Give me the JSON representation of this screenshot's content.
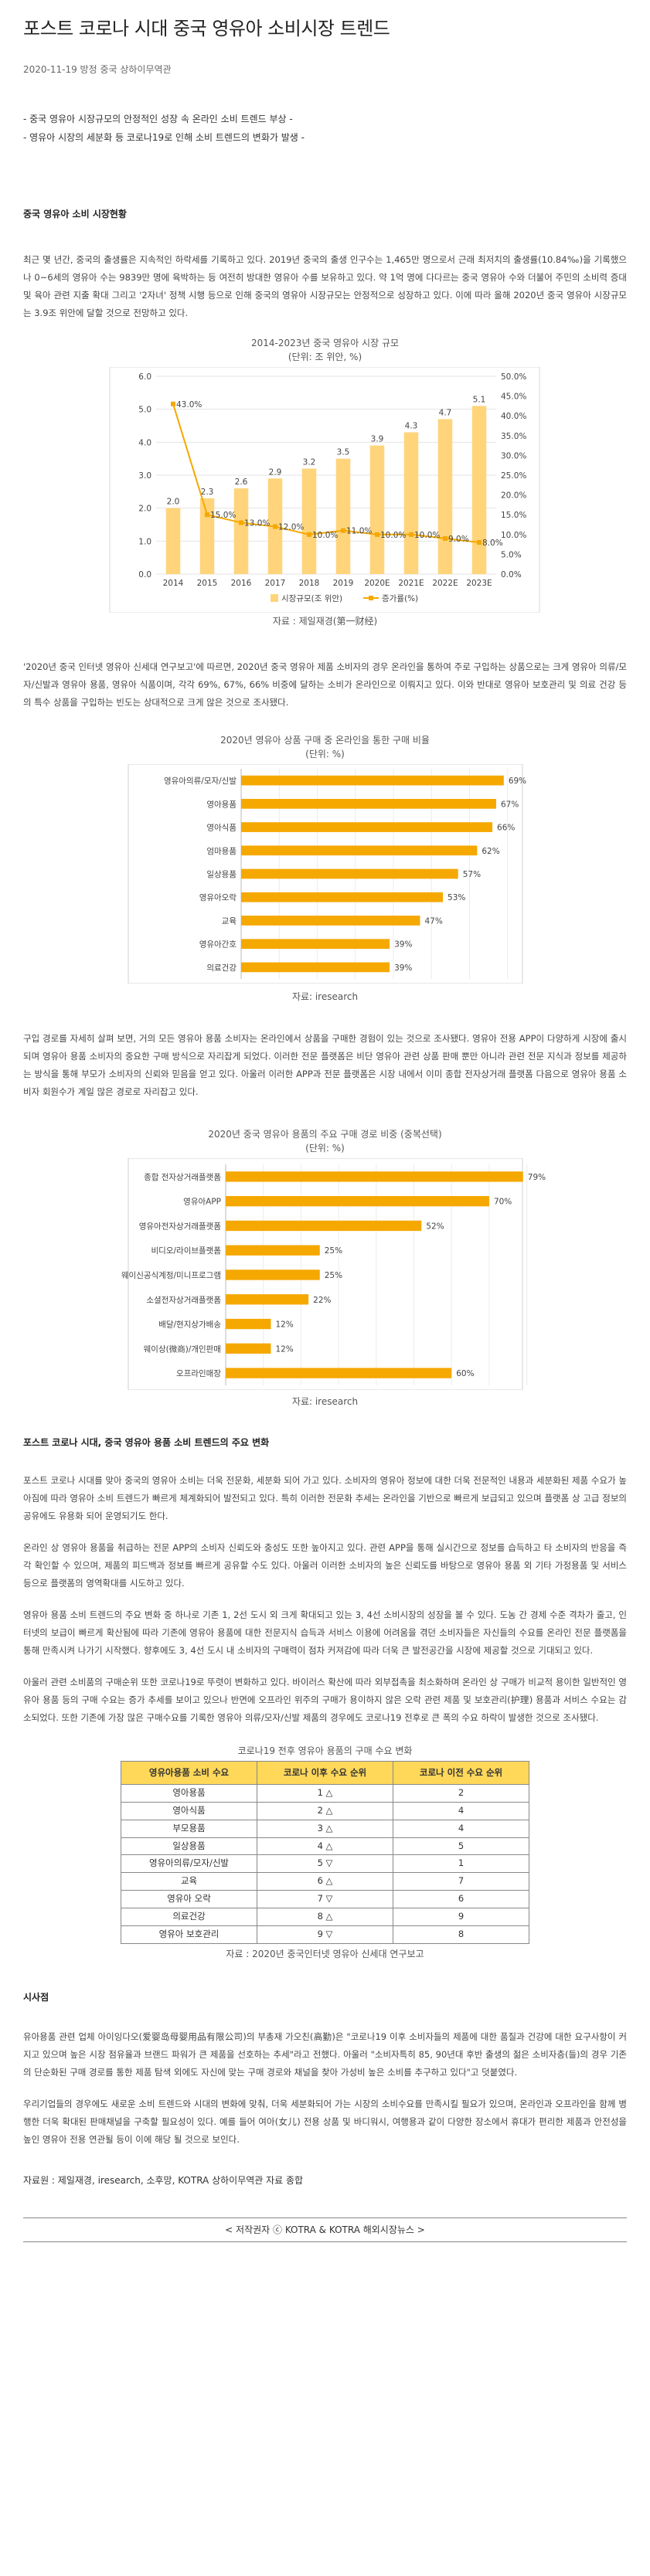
{
  "article": {
    "title": "포스트 코로나 시대 중국 영유아 소비시장 트렌드",
    "meta": "2020-11-19 방정 중국 상하이무역관",
    "summary": [
      "- 중국 영유아 시장규모의 안정적인 성장 속 온라인 소비 트렌드 부상 -",
      "- 영유아 시장의 세분화 등 코로나19로 인해 소비 트렌드의 변화가 발생 -"
    ],
    "section1_title": "중국 영유아 소비 시장현황",
    "para1": "최근 몇 년간, 중국의 출생률은 지속적인 하락세를 기록하고 있다. 2019년 중국의 출생 인구수는 1,465만 명으로서 근래 최저치의 출생률(10.84‰)을 기록했으나 0~6세의 영유아 수는 9839만 명에 육박하는 등 여전히 방대한 영유아 수를 보유하고 있다. 약 1억 명에 다다르는 중국 영유아 수와 더불어 주민의 소비력 증대 및 육아 관련 지출 확대 그리고 '2자녀' 정책 시행 등으로 인해 중국의 영유아 시장규모는 안정적으로 성장하고 있다. 이에 따라 올해 2020년 중국 영유아 시장규모는 3.9조 위안에 달할 것으로 전망하고 있다.",
    "para2": "'2020년 중국 인터넷 영유아 신세대 연구보고'에 따르면, 2020년 중국 영유아 제품 소비자의 경우 온라인을 통하여 주로 구입하는 상품으로는 크게 영유아 의류/모자/신발과 영유아 용품, 영유아 식품이며, 각각 69%, 67%, 66% 비중에 달하는 소비가 온라인으로 이뤄지고 있다. 이와 반대로 영유아 보호관리 및 의료 건강 등의 특수 상품을 구입하는 빈도는 상대적으로 크게 않은 것으로 조사됐다.",
    "para3": "구입 경로를 자세히 살펴 보면, 거의 모든 영유아 용품 소비자는 온라인에서 상품을 구매한 경험이 있는 것으로 조사됐다. 영유아 전용 APP이 다양하게 시장에 출시되며 영유아 용품 소비자의 중요한 구매 방식으로 자리잡게 되었다. 이러한 전문 플랫폼은 비단 영유아 관련 상품 판매 뿐만 아니라 관련 전문 지식과 정보를 제공하는 방식을 통해 부모가 소비자의 신뢰와 믿음을 얻고 있다. 아울러 이러한 APP과 전문 플랫폼은 시장 내에서 이미 종합 전자상거래 플랫폼 다음으로 영유아 용품 소비자 회원수가 계일 많은 경로로 자리잡고 있다.",
    "section2_title": "포스트 코로나 시대, 중국 영유아 용품 소비 트렌드의 주요 변화",
    "para4": "포스트 코로나 시대를 맞아 중국의 영유아 소비는 더욱 전문화, 세분화 되어 가고 있다. 소비자의 영유아 정보에 대한 더욱 전문적인 내용과 세분화된 제품 수요가 높아짐에 따라 영유아 소비 트렌드가 빠르게 체계화되어 발전되고 있다. 특히 이러한 전문화 추세는 온라인을 기반으로 빠르게 보급되고 있으며 플랫폼 상 고급 정보의 공유에도 유용화 되어 운영되기도 한다.",
    "para5": "온라인 상 영유아 용품을 취급하는 전문 APP의 소비자 신뢰도와 충성도 또한 높아지고 있다. 관련 APP을 통해 실시간으로 정보를 습득하고 타 소비자의 반응을 즉각 확인할 수 있으며, 제품의 피드백과 정보를 빠르게 공유할 수도 있다. 아울러 이러한 소비자의 높은 신뢰도를 바탕으로 영유아 용품 외 기타 가정용품 및 서비스 등으로 플랫폼의 영역확대를 시도하고 있다.",
    "para6": "영유아 용품 소비 트렌드의 주요 변화 중 하나로 기존 1, 2선 도시 외 크게 확대되고 있는 3, 4선 소비시장의 성장을 볼 수 있다. 도농 간 경제 수준 격차가 줄고, 인터넷의 보급이 빠르게 확산됨에 따라 기존에 영유아 용품에 대한 전문지식 습득과 서비스 이용에 어려움을 겪던 소비자들은 자신들의 수요를 온라인 전문 플랫폼을 통해 만족시켜 나가기 시작했다. 향후에도 3, 4선 도시 내 소비자의 구매력이 점차 커져감에 따라 더욱 큰 발전공간을 시장에 제공할 것으로 기대되고 있다.",
    "para7": "아울러 관련 소비품의 구매순위 또한 코로나19로 뚜렷이 변화하고 있다. 바이러스 확산에 따라 외부접촉을 최소화하며 온라인 상 구매가 비교적 용이한 일반적인 영유아 용품 등의 구매 수요는 증가 추세를 보이고 있으나 반면에 오프라인 위주의 구매가 용이하지 않은 오락 관련 제품 및 보호관리(护理) 용품과 서비스 수요는 감소되었다. 또한 기존에 가장 많은 구매수요를 기록한 영유아 의류/모자/신발 제품의 경우에도 코로나19 전후로 큰 폭의 수요 하락이 발생한 것으로 조사됐다.",
    "section3_title": "시사점",
    "para8": "유아용품 관련 업체 아이잉다오(爱婴岛母婴用品有限公司)의 부총재 가오친(高勤)은 \"코로나19 이후 소비자들의 제품에 대한 품질과 건강에 대한 요구사항이 커지고 있으며 높은 시장 점유율과 브랜드 파워가 큰 제품을 선호하는 추세\"라고 전했다. 아울러 \"소비자특히 85, 90년대 후반 출생의 젊은 소비자층(들)의 경우 기존의 단순화된 구매 경로를 통한 제품 탐색 외에도 자신에 맞는 구매 경로와 채널을 찾아 가성비 높은 소비를 추구하고 있다\"고 덧붙였다.",
    "para9": "우리기업들의 경우에도 새로운 소비 트렌드와 시대의 변화에 맞춰, 더욱 세분화되어 가는 시장의 소비수요를 만족시킬 필요가 있으며, 온라인과 오프라인을 함께 병행한 더욱 확대된 판매채널을 구축할 필요성이 있다. 예를 들어 여아(女儿) 전용 상품 및 바디워시, 여행용과 같이 다양한 장소에서 휴대가 편리한 제품과 안전성을 높인 영유아 전용 연관될 등이 이에 해당 될 것으로 보인다.",
    "sources": "자료원 : 제일재경, iresearch, 소후망, KOTRA 상하이무역관 자료 종합",
    "footer": "< 저작권자 ⓒ KOTRA & KOTRA 해외시장뉴스 >"
  },
  "chart1": {
    "title": "2014-2023년 중국 영유아 시장 규모",
    "unit": "(단위: 조 위안, %)",
    "source": "자료 : 제일재경(第一财经)",
    "legend_bar": "시장규모(조 위안)",
    "legend_line": "증가률(%)",
    "colors": {
      "bar": "#ffd47a",
      "line": "#f5a800"
    }
  },
  "chart2": {
    "title": "2020년  영유아 상품 구매  중 온라인을 통한 구매 비율",
    "unit": "(단위: %)",
    "source": "자료: iresearch",
    "colors": {
      "bar": "#f5a800"
    }
  },
  "chart3": {
    "title": "2020년 중국 영유아 용품의 주요 구매 경로 비중 (중복선택)",
    "unit": "(단위: %)",
    "source": "자료: iresearch",
    "colors": {
      "bar": "#f5a800"
    }
  },
  "table": {
    "caption": "코로나19 전후 영유아 용품의 구매 수요 변화",
    "headers": [
      "영유아용품 소비 수요",
      "코로나 이후 수요 순위",
      "코로나 이전 수요 순위"
    ],
    "rows": [
      [
        "영아용품",
        "1 △",
        "2"
      ],
      [
        "영아식품",
        "2 △",
        "4"
      ],
      [
        "부모용품",
        "3 △",
        "4"
      ],
      [
        "일상용품",
        "4 △",
        "5"
      ],
      [
        "영유아의류/모자/신발",
        "5 ▽",
        "1"
      ],
      [
        "교육",
        "6 △",
        "7"
      ],
      [
        "영유아 오락",
        "7 ▽",
        "6"
      ],
      [
        "의료건강",
        "8 △",
        "9"
      ],
      [
        "영유아 보호관리",
        "9 ▽",
        "8"
      ]
    ],
    "source": "자료 : 2020년 중국인터넷 영유아 신세대 연구보고"
  },
  "chart_data": [
    {
      "type": "bar",
      "title": "2014-2023년 중국 영유아 시장 규모",
      "categories": [
        "2014",
        "2015",
        "2016",
        "2017",
        "2018",
        "2019",
        "2020E",
        "2021E",
        "2022E",
        "2023E"
      ],
      "series": [
        {
          "name": "시장규모(조 위안)",
          "type": "bar",
          "axis": "left",
          "values": [
            2.0,
            2.3,
            2.6,
            2.9,
            3.2,
            3.5,
            3.9,
            4.3,
            4.7,
            5.1
          ]
        },
        {
          "name": "증가률(%)",
          "type": "line",
          "axis": "right",
          "values": [
            43.0,
            15.0,
            13.0,
            12.0,
            10.0,
            11.0,
            10.0,
            10.0,
            9.0,
            8.0
          ]
        }
      ],
      "ylim": [
        0,
        6
      ],
      "y_ticks": [
        "0.0",
        "1.0",
        "2.0",
        "3.0",
        "4.0",
        "5.0",
        "6.0"
      ],
      "y2lim": [
        0,
        50
      ],
      "y2_ticks": [
        "0.0%",
        "5.0%",
        "10.0%",
        "15.0%",
        "20.0%",
        "25.0%",
        "30.0%",
        "35.0%",
        "40.0%",
        "45.0%",
        "50.0%"
      ],
      "line_labels": [
        "43.0%",
        "15.0%",
        "13.0%",
        "12.0%",
        "10.0%",
        "11.0%",
        "10.0%",
        "10.0%",
        "9.0%",
        "8.0%"
      ],
      "grid": true,
      "legend": "bottom"
    },
    {
      "type": "bar",
      "orientation": "horizontal",
      "title": "2020년  영유아 상품 구매  중 온라인을 통한 구매 비율",
      "categories": [
        "영유아의류/모자/신발",
        "영아용품",
        "영아식품",
        "엄마용품",
        "일상용품",
        "영유아오락",
        "교육",
        "영유아간호",
        "의료건강"
      ],
      "values": [
        69,
        67,
        66,
        62,
        57,
        53,
        47,
        39,
        39
      ],
      "labels": [
        "69%",
        "67%",
        "66%",
        "62%",
        "57%",
        "53%",
        "47%",
        "39%",
        "39%"
      ],
      "xlim": [
        0,
        80
      ],
      "grid": true
    },
    {
      "type": "bar",
      "orientation": "horizontal",
      "title": "2020년 중국 영유아 용품의 주요 구매 경로 비중 (중복선택)",
      "categories": [
        "종합 전자상거래플랫폼",
        "영유아APP",
        "영유아전자상거래플랫폼",
        "비디오/라이브플랫폼",
        "웨이신공식계정/미니프로그램",
        "소셜전자상거래플랫폼",
        "배달/현지상가배송",
        "웨이상(微商)/개인판매",
        "오프라인매장"
      ],
      "values": [
        79,
        70,
        52,
        25,
        25,
        22,
        12,
        12,
        60
      ],
      "labels": [
        "79%",
        "70%",
        "52%",
        "25%",
        "25%",
        "22%",
        "12%",
        "12%",
        "60%"
      ],
      "xlim": [
        0,
        85
      ],
      "grid": true
    }
  ]
}
